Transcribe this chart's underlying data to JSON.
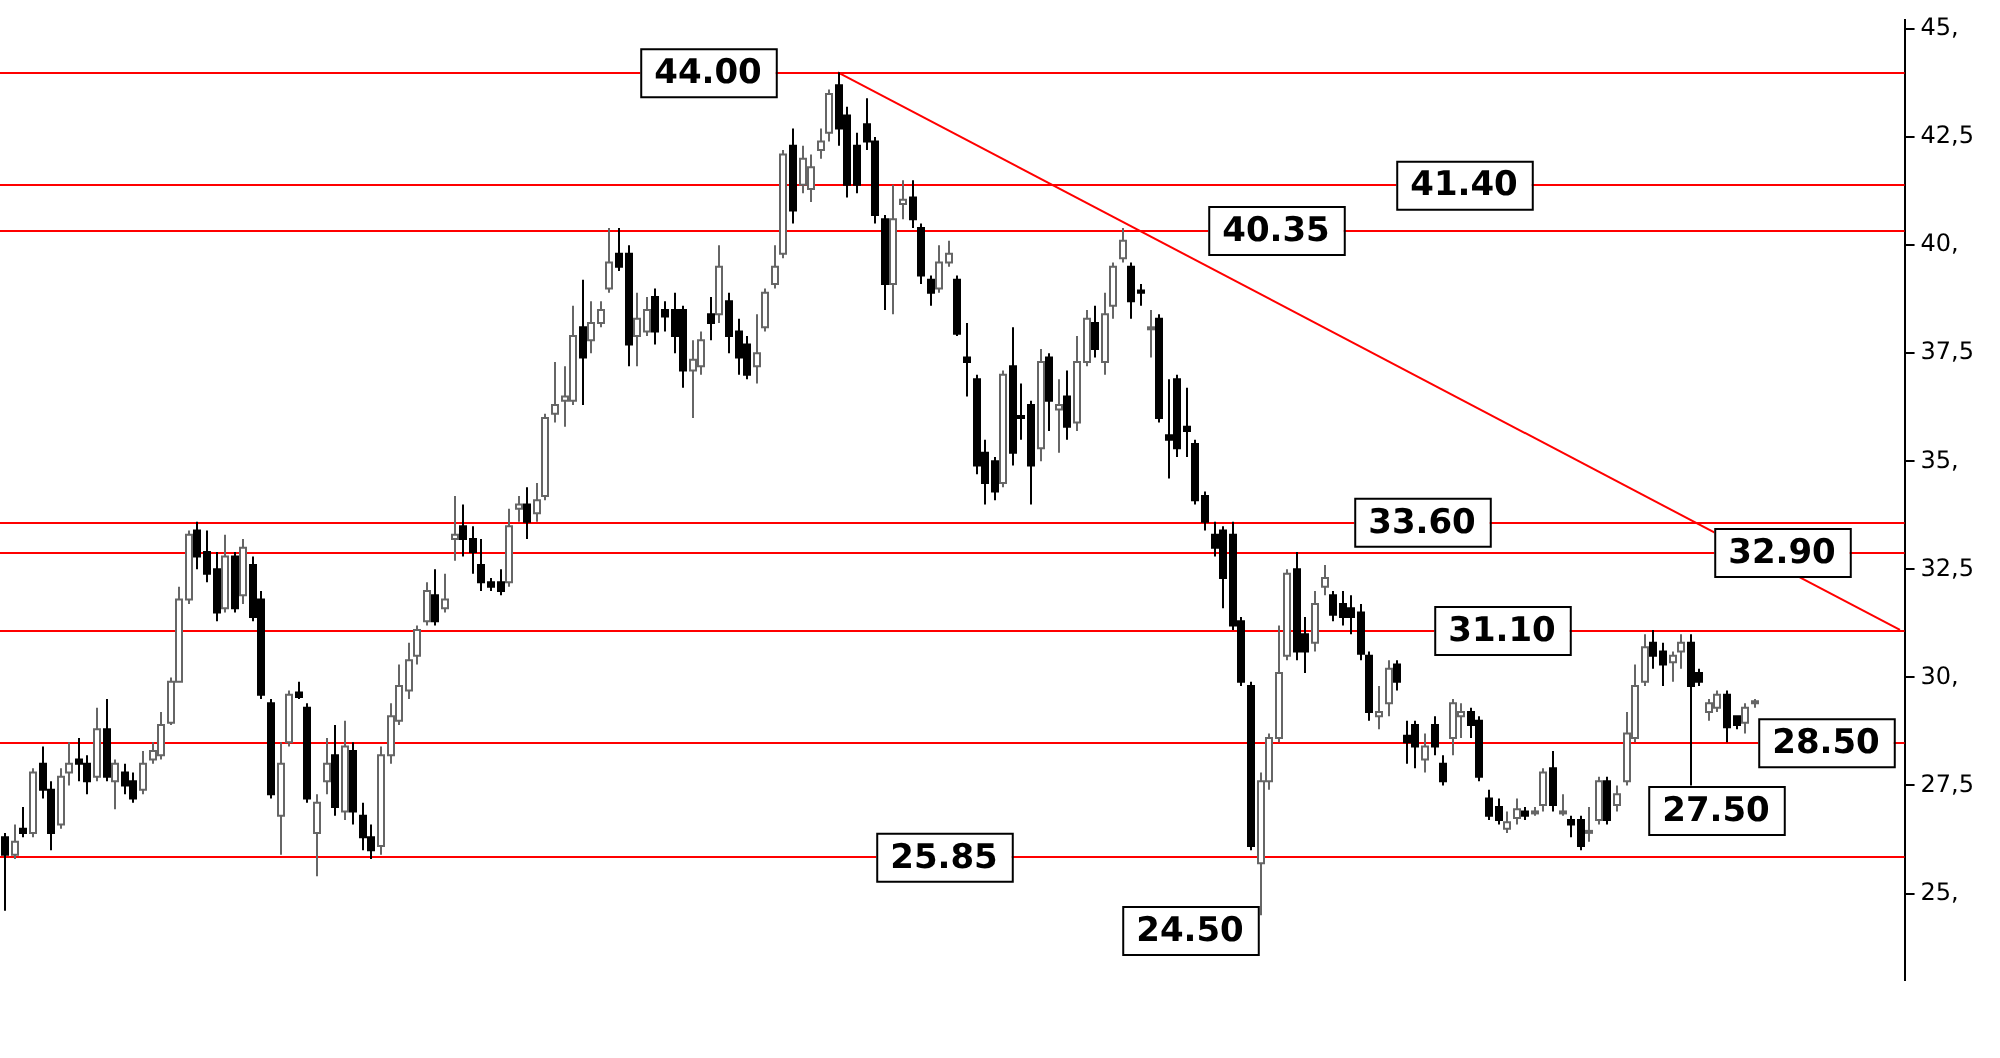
{
  "chart_data": {
    "type": "candlestick",
    "categories": [
      null,
      null,
      null,
      null,
      null,
      null,
      null,
      null,
      null,
      null,
      null,
      null,
      null,
      null,
      null,
      null,
      null,
      null,
      null,
      null,
      null,
      null,
      null,
      null,
      null,
      null,
      null,
      null,
      null,
      null,
      null,
      null,
      null,
      null,
      null,
      null,
      null,
      null,
      null,
      null,
      null,
      null,
      null,
      null,
      null,
      null,
      null,
      null,
      null,
      null,
      null,
      null,
      null,
      null,
      null,
      null,
      null,
      null,
      null,
      null,
      null,
      null,
      null,
      null,
      null,
      null,
      null,
      null,
      null,
      null,
      null,
      null,
      null,
      null,
      null,
      null,
      null,
      null,
      null,
      null,
      null,
      null,
      null,
      null,
      null,
      null,
      null,
      null,
      null,
      null,
      null,
      null,
      null,
      null,
      null,
      null,
      null,
      null,
      null,
      null,
      null,
      null,
      null,
      null,
      null,
      null,
      null,
      null,
      null,
      null,
      null,
      null,
      null,
      null,
      null,
      null,
      null,
      null,
      null,
      null,
      null,
      null,
      null,
      null,
      null,
      null,
      null,
      null,
      null,
      null,
      null,
      null,
      null,
      null,
      null,
      null,
      null,
      null,
      null,
      null,
      null,
      null,
      null,
      null,
      null,
      null,
      null,
      null,
      null,
      null,
      null,
      null,
      null,
      null,
      null,
      null,
      null,
      null,
      null,
      null,
      null,
      null,
      null,
      null,
      null,
      null,
      null,
      null,
      null,
      null,
      null,
      null,
      null,
      null,
      null,
      null,
      null,
      null,
      null,
      null,
      null,
      null,
      null,
      null,
      null,
      null,
      null,
      null,
      null,
      null,
      null,
      null,
      null,
      null,
      null,
      null,
      null,
      null,
      null,
      null,
      null,
      null,
      null,
      null,
      null,
      null,
      null,
      null
    ],
    "ohlc": [
      [
        26.3,
        26.4,
        24.6,
        25.9
      ],
      [
        25.9,
        26.6,
        25.8,
        26.2
      ],
      [
        26.5,
        27.0,
        26.3,
        26.4
      ],
      [
        26.4,
        27.9,
        26.3,
        27.8
      ],
      [
        28.0,
        28.4,
        27.2,
        27.4
      ],
      [
        27.4,
        27.6,
        26.0,
        26.4
      ],
      [
        26.6,
        27.9,
        26.5,
        27.7
      ],
      [
        27.8,
        28.5,
        27.5,
        28.0
      ],
      [
        28.1,
        28.6,
        27.6,
        28.0
      ],
      [
        28.0,
        28.2,
        27.3,
        27.6
      ],
      [
        27.7,
        29.3,
        27.6,
        28.8
      ],
      [
        28.8,
        29.5,
        27.6,
        27.7
      ],
      [
        27.6,
        28.1,
        26.95,
        28.0
      ],
      [
        27.8,
        28.0,
        27.3,
        27.5
      ],
      [
        27.6,
        27.8,
        27.1,
        27.2
      ],
      [
        27.4,
        28.3,
        27.3,
        28.0
      ],
      [
        28.1,
        28.5,
        28.0,
        28.3
      ],
      [
        28.2,
        29.2,
        28.1,
        28.9
      ],
      [
        28.95,
        30.0,
        28.9,
        29.9
      ],
      [
        29.9,
        32.1,
        29.9,
        31.8
      ],
      [
        31.8,
        33.4,
        31.7,
        33.3
      ],
      [
        33.4,
        33.6,
        32.5,
        32.8
      ],
      [
        32.9,
        33.4,
        32.2,
        32.4
      ],
      [
        32.5,
        32.9,
        31.3,
        31.5
      ],
      [
        31.6,
        33.3,
        31.5,
        32.8
      ],
      [
        32.8,
        32.9,
        31.5,
        31.6
      ],
      [
        31.9,
        33.2,
        31.7,
        33.0
      ],
      [
        32.6,
        32.8,
        31.3,
        31.4
      ],
      [
        31.8,
        32.0,
        29.5,
        29.6
      ],
      [
        29.4,
        29.5,
        27.2,
        27.3
      ],
      [
        26.8,
        28.5,
        25.9,
        28.0
      ],
      [
        28.5,
        29.7,
        28.4,
        29.6
      ],
      [
        29.65,
        29.9,
        29.5,
        29.55
      ],
      [
        29.3,
        29.4,
        27.1,
        27.2
      ],
      [
        26.4,
        27.3,
        25.4,
        27.1
      ],
      [
        27.6,
        28.6,
        27.3,
        28.0
      ],
      [
        28.2,
        28.9,
        26.8,
        27.0
      ],
      [
        26.9,
        29.0,
        26.7,
        28.4
      ],
      [
        28.3,
        28.5,
        26.6,
        26.9
      ],
      [
        26.8,
        27.1,
        26.0,
        26.3
      ],
      [
        26.3,
        26.6,
        25.8,
        26.0
      ],
      [
        26.1,
        28.4,
        25.9,
        28.2
      ],
      [
        28.2,
        29.4,
        28.0,
        29.1
      ],
      [
        29.0,
        30.3,
        28.9,
        29.8
      ],
      [
        29.7,
        30.8,
        29.5,
        30.4
      ],
      [
        30.5,
        31.2,
        30.3,
        31.1
      ],
      [
        31.3,
        32.2,
        31.2,
        32.0
      ],
      [
        31.9,
        32.5,
        31.2,
        31.3
      ],
      [
        31.6,
        32.4,
        31.5,
        31.8
      ],
      [
        33.2,
        34.2,
        32.7,
        33.3
      ],
      [
        33.5,
        34.0,
        32.8,
        33.2
      ],
      [
        33.2,
        33.5,
        32.4,
        32.9
      ],
      [
        32.6,
        33.2,
        32.0,
        32.2
      ],
      [
        32.2,
        32.3,
        32.0,
        32.1
      ],
      [
        32.2,
        32.5,
        31.9,
        32.0
      ],
      [
        32.2,
        33.9,
        32.1,
        33.5
      ],
      [
        33.9,
        34.2,
        33.6,
        34.0
      ],
      [
        34.0,
        34.4,
        33.2,
        33.6
      ],
      [
        33.8,
        34.5,
        33.6,
        34.1
      ],
      [
        34.2,
        36.1,
        34.1,
        36.0
      ],
      [
        36.1,
        37.3,
        35.9,
        36.3
      ],
      [
        36.4,
        37.2,
        35.8,
        36.5
      ],
      [
        36.4,
        38.6,
        36.3,
        37.9
      ],
      [
        38.1,
        39.2,
        36.3,
        37.4
      ],
      [
        37.8,
        38.7,
        37.5,
        38.2
      ],
      [
        38.2,
        38.7,
        38.1,
        38.5
      ],
      [
        39.0,
        40.4,
        38.9,
        39.6
      ],
      [
        39.8,
        40.4,
        39.4,
        39.5
      ],
      [
        39.8,
        40.0,
        37.2,
        37.7
      ],
      [
        37.9,
        38.9,
        37.2,
        38.3
      ],
      [
        38.0,
        38.8,
        37.9,
        38.5
      ],
      [
        38.8,
        39.0,
        37.7,
        38.0
      ],
      [
        38.5,
        38.7,
        38.0,
        38.35
      ],
      [
        38.5,
        38.9,
        37.5,
        37.9
      ],
      [
        38.5,
        38.6,
        36.7,
        37.1
      ],
      [
        37.1,
        37.8,
        36.0,
        37.35
      ],
      [
        37.2,
        38.0,
        37.0,
        37.8
      ],
      [
        38.4,
        38.8,
        37.8,
        38.2
      ],
      [
        38.4,
        40.0,
        38.2,
        39.5
      ],
      [
        38.7,
        38.9,
        37.5,
        37.9
      ],
      [
        38.0,
        38.3,
        37.0,
        37.4
      ],
      [
        37.7,
        37.9,
        36.9,
        37.0
      ],
      [
        37.2,
        38.4,
        36.8,
        37.5
      ],
      [
        38.1,
        39.0,
        38.0,
        38.9
      ],
      [
        39.1,
        40.0,
        39.0,
        39.5
      ],
      [
        39.8,
        42.2,
        39.7,
        42.1
      ],
      [
        42.3,
        42.7,
        40.5,
        40.8
      ],
      [
        41.4,
        42.3,
        41.2,
        42.0
      ],
      [
        41.3,
        42.1,
        41.0,
        41.8
      ],
      [
        42.2,
        42.7,
        42.0,
        42.4
      ],
      [
        42.6,
        43.6,
        42.4,
        43.5
      ],
      [
        43.7,
        44.0,
        42.3,
        42.7
      ],
      [
        43.0,
        43.2,
        41.1,
        41.4
      ],
      [
        42.3,
        42.6,
        41.2,
        41.4
      ],
      [
        42.8,
        43.4,
        42.2,
        42.4
      ],
      [
        42.4,
        42.5,
        40.5,
        40.7
      ],
      [
        40.6,
        40.7,
        38.5,
        39.1
      ],
      [
        39.1,
        41.4,
        38.4,
        40.6
      ],
      [
        40.95,
        41.5,
        40.6,
        41.05
      ],
      [
        41.1,
        41.5,
        40.4,
        40.6
      ],
      [
        40.4,
        40.5,
        39.1,
        39.3
      ],
      [
        39.2,
        39.3,
        38.6,
        38.9
      ],
      [
        39.0,
        40.0,
        38.9,
        39.6
      ],
      [
        39.6,
        40.1,
        39.5,
        39.8
      ],
      [
        39.2,
        39.3,
        37.9,
        37.95
      ],
      [
        37.4,
        38.2,
        36.5,
        37.3
      ],
      [
        36.9,
        37.0,
        34.7,
        34.9
      ],
      [
        35.2,
        35.5,
        34.0,
        34.5
      ],
      [
        35.0,
        35.1,
        34.1,
        34.3
      ],
      [
        34.5,
        37.1,
        34.4,
        37.0
      ],
      [
        37.2,
        38.1,
        34.9,
        35.2
      ],
      [
        36.05,
        36.8,
        35.5,
        36.0
      ],
      [
        36.3,
        36.4,
        34.0,
        34.9
      ],
      [
        35.3,
        37.6,
        35.0,
        37.3
      ],
      [
        37.4,
        37.5,
        35.7,
        36.4
      ],
      [
        36.2,
        36.9,
        35.2,
        36.3
      ],
      [
        36.5,
        37.1,
        35.5,
        35.8
      ],
      [
        35.9,
        37.9,
        35.7,
        37.3
      ],
      [
        37.3,
        38.5,
        37.2,
        38.3
      ],
      [
        38.2,
        38.6,
        37.4,
        37.6
      ],
      [
        37.3,
        38.9,
        37.0,
        38.4
      ],
      [
        38.6,
        39.6,
        38.3,
        39.5
      ],
      [
        39.7,
        40.4,
        39.6,
        40.1
      ],
      [
        39.5,
        39.6,
        38.3,
        38.7
      ],
      [
        38.95,
        39.1,
        38.6,
        38.9
      ],
      [
        38.1,
        38.5,
        37.4,
        38.1
      ],
      [
        38.3,
        38.4,
        35.9,
        36.0
      ],
      [
        35.6,
        36.9,
        34.6,
        35.5
      ],
      [
        36.9,
        37.0,
        35.1,
        35.3
      ],
      [
        35.8,
        36.7,
        35.1,
        35.7
      ],
      [
        35.4,
        35.5,
        34.0,
        34.1
      ],
      [
        34.2,
        34.3,
        33.4,
        33.6
      ],
      [
        33.3,
        33.6,
        32.8,
        33.0
      ],
      [
        33.4,
        33.5,
        31.6,
        32.3
      ],
      [
        33.3,
        33.6,
        31.1,
        31.2
      ],
      [
        31.3,
        31.4,
        29.8,
        29.9
      ],
      [
        29.8,
        29.9,
        26.0,
        26.1
      ],
      [
        25.7,
        27.8,
        24.5,
        27.6
      ],
      [
        27.6,
        28.7,
        27.4,
        28.6
      ],
      [
        28.6,
        31.2,
        28.5,
        30.1
      ],
      [
        30.5,
        32.5,
        30.4,
        32.4
      ],
      [
        32.5,
        32.9,
        30.4,
        30.6
      ],
      [
        31.0,
        31.4,
        30.1,
        30.6
      ],
      [
        30.8,
        32.0,
        30.6,
        31.7
      ],
      [
        32.1,
        32.6,
        31.9,
        32.3
      ],
      [
        31.9,
        32.0,
        31.3,
        31.45
      ],
      [
        31.7,
        32.0,
        31.2,
        31.4
      ],
      [
        31.6,
        31.9,
        31.0,
        31.4
      ],
      [
        31.5,
        31.7,
        30.4,
        30.55
      ],
      [
        30.5,
        30.6,
        29.0,
        29.2
      ],
      [
        29.1,
        29.8,
        28.8,
        29.2
      ],
      [
        29.4,
        30.4,
        29.1,
        30.2
      ],
      [
        30.3,
        30.4,
        29.7,
        29.9
      ],
      [
        28.65,
        29.0,
        28.0,
        28.5
      ],
      [
        28.9,
        29.0,
        27.9,
        28.4
      ],
      [
        28.1,
        28.7,
        27.8,
        28.4
      ],
      [
        28.9,
        29.1,
        28.2,
        28.4
      ],
      [
        28.0,
        28.2,
        27.5,
        27.6
      ],
      [
        28.6,
        29.5,
        28.2,
        29.4
      ],
      [
        29.1,
        29.4,
        28.6,
        29.2
      ],
      [
        29.2,
        29.3,
        28.6,
        28.9
      ],
      [
        29.0,
        29.1,
        27.6,
        27.7
      ],
      [
        27.2,
        27.4,
        26.7,
        26.8
      ],
      [
        27.0,
        27.2,
        26.6,
        26.7
      ],
      [
        26.5,
        26.9,
        26.4,
        26.65
      ],
      [
        26.75,
        27.2,
        26.6,
        26.95
      ],
      [
        26.9,
        27.0,
        26.7,
        26.8
      ],
      [
        26.9,
        27.0,
        26.8,
        26.9
      ],
      [
        27.05,
        27.9,
        26.9,
        27.8
      ],
      [
        27.9,
        28.3,
        26.9,
        27.05
      ],
      [
        26.9,
        27.3,
        26.8,
        26.9
      ],
      [
        26.7,
        26.8,
        26.3,
        26.6
      ],
      [
        26.7,
        26.8,
        26.0,
        26.1
      ],
      [
        26.45,
        27.0,
        26.2,
        26.45
      ],
      [
        26.7,
        27.7,
        26.6,
        27.6
      ],
      [
        27.6,
        27.7,
        26.6,
        26.7
      ],
      [
        27.05,
        27.5,
        26.9,
        27.3
      ],
      [
        27.6,
        29.2,
        27.5,
        28.7
      ],
      [
        28.6,
        30.3,
        28.5,
        29.8
      ],
      [
        29.9,
        31.0,
        29.8,
        30.7
      ],
      [
        30.8,
        31.1,
        30.2,
        30.5
      ],
      [
        30.6,
        30.8,
        29.8,
        30.3
      ],
      [
        30.35,
        30.6,
        29.9,
        30.5
      ],
      [
        30.6,
        31.0,
        30.2,
        30.8
      ],
      [
        30.8,
        31.0,
        27.5,
        29.8
      ],
      [
        30.1,
        30.2,
        29.8,
        29.9
      ],
      [
        29.2,
        29.5,
        29.0,
        29.4
      ],
      [
        29.3,
        29.7,
        29.2,
        29.6
      ],
      [
        29.6,
        29.7,
        28.5,
        28.85
      ],
      [
        29.1,
        29.1,
        28.8,
        28.9
      ],
      [
        28.95,
        29.4,
        28.7,
        29.3
      ],
      [
        29.4,
        29.5,
        29.3,
        29.45
      ],
      null,
      null,
      null,
      null,
      null,
      null,
      null,
      null,
      null,
      null,
      null,
      null,
      null,
      null,
      null,
      null
    ],
    "series": [
      {
        "type": "line",
        "color": "#ff0000",
        "values": [
          null,
          null,
          null,
          null,
          null,
          null,
          null,
          null,
          null,
          null,
          null,
          null,
          null,
          null,
          null,
          null,
          null,
          null,
          null,
          null,
          null,
          null,
          null,
          null,
          null,
          null,
          null,
          null,
          null,
          null,
          null,
          null,
          null,
          null,
          null,
          null,
          null,
          null,
          null,
          null,
          null,
          null,
          null,
          null,
          null,
          null,
          null,
          null,
          null,
          null,
          null,
          null,
          null,
          null,
          null,
          null,
          null,
          null,
          null,
          null,
          null,
          null,
          null,
          null,
          null,
          null,
          null,
          null,
          null,
          null,
          null,
          null,
          null,
          null,
          null,
          null,
          null,
          null,
          null,
          null,
          null,
          null,
          null,
          null,
          null,
          null,
          null,
          null,
          null,
          null,
          null,
          44.0,
          null,
          null,
          null,
          null,
          null,
          null,
          null,
          null,
          null,
          null,
          null,
          null,
          null,
          null,
          null,
          null,
          null,
          null,
          null,
          null,
          null,
          null,
          null,
          null,
          null,
          null,
          null,
          null,
          null,
          null,
          null,
          null,
          null,
          null,
          null,
          null,
          null,
          null,
          null,
          null,
          null,
          null,
          null,
          null,
          null,
          null,
          null,
          null,
          null,
          null,
          null,
          null,
          null,
          null,
          null,
          null,
          null,
          null,
          null,
          null,
          null,
          null,
          null,
          null,
          null,
          null,
          null,
          null,
          null,
          null,
          null,
          null,
          null,
          null,
          null,
          null,
          null,
          null,
          null,
          null,
          null,
          null,
          null,
          null,
          null,
          null,
          null,
          null,
          null,
          null,
          null,
          null,
          null,
          null,
          null,
          null,
          null,
          null,
          null,
          null,
          null,
          null,
          null,
          null,
          null,
          null,
          null,
          null,
          null,
          null,
          null,
          null,
          null,
          null,
          null,
          31.1
        ]
      }
    ],
    "ylim": [
      23,
      45.2
    ],
    "yticks": [
      {
        "value": 25,
        "label": "25,"
      },
      {
        "value": 27.5,
        "label": "27,5"
      },
      {
        "value": 30,
        "label": "30,"
      },
      {
        "value": 32.5,
        "label": "32,5"
      },
      {
        "value": 35,
        "label": "35,"
      },
      {
        "value": 37.5,
        "label": "37,5"
      },
      {
        "value": 40,
        "label": "40,"
      },
      {
        "value": 42.5,
        "label": "42,5"
      },
      {
        "value": 45,
        "label": "45,"
      }
    ],
    "tick_labels": "y",
    "ref_lines": [
      {
        "axis": "y",
        "value": 44.0,
        "label": "44.00",
        "color": "#ff0000"
      },
      {
        "axis": "y",
        "value": 41.4,
        "label": "41.40",
        "color": "#ff0000"
      },
      {
        "axis": "y",
        "value": 40.35,
        "label": "40.35",
        "color": "#ff0000"
      },
      {
        "axis": "y",
        "value": 33.6,
        "label": "33.60",
        "color": "#ff0000"
      },
      {
        "axis": "y",
        "value": 32.9,
        "label": "32.90",
        "color": "#ff0000"
      },
      {
        "axis": "y",
        "value": 31.1,
        "label": "31.10",
        "color": "#ff0000"
      },
      {
        "axis": "y",
        "value": 28.5,
        "label": "28.50",
        "color": "#ff0000"
      },
      {
        "axis": "y",
        "value": 25.85,
        "label": "25.85",
        "color": "#ff0000"
      }
    ],
    "annotations": [
      "24.50",
      "27.50"
    ]
  }
}
